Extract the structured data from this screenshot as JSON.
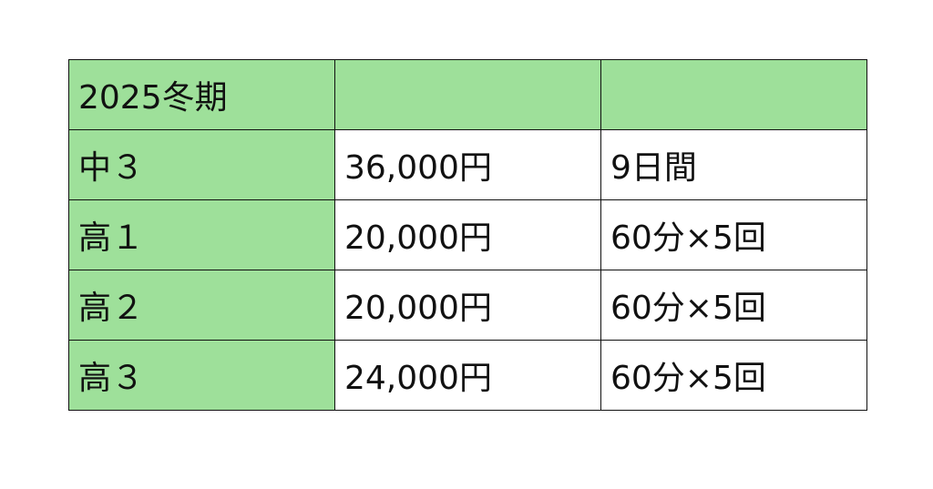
{
  "colors": {
    "header_fill": "#9ee09a",
    "cell_fill": "#ffffff",
    "border": "#111111"
  },
  "table": {
    "header": [
      "2025冬期",
      "",
      ""
    ],
    "rows": [
      [
        "中３",
        "36,000円",
        "9日間"
      ],
      [
        "高１",
        "20,000円",
        "60分×5回"
      ],
      [
        "高２",
        "20,000円",
        "60分×5回"
      ],
      [
        "高３",
        "24,000円",
        "60分×5回"
      ]
    ]
  }
}
